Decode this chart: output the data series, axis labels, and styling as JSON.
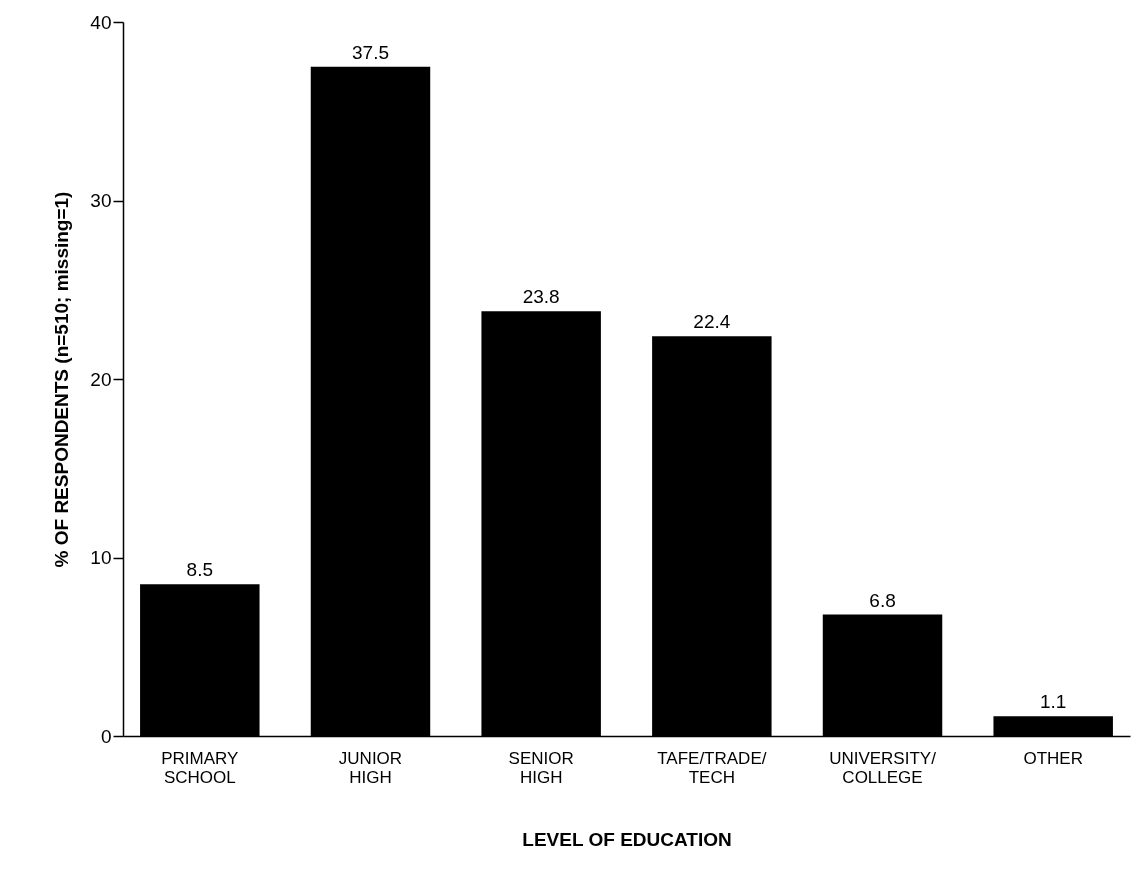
{
  "chart_data": {
    "type": "bar",
    "xlabel": "LEVEL OF EDUCATION",
    "ylabel": "% OF RESPONDENTS (n=510; missing=1)",
    "categories": [
      "PRIMARY\nSCHOOL",
      "JUNIOR\nHIGH",
      "SENIOR\nHIGH",
      "TAFE/TRADE/\nTECH",
      "UNIVERSITY/\nCOLLEGE",
      "OTHER"
    ],
    "values": [
      8.5,
      37.5,
      23.8,
      22.4,
      6.8,
      1.1
    ],
    "color": "#000000",
    "ylim": [
      0,
      40
    ],
    "yticks": [
      0,
      10,
      20,
      30,
      40
    ],
    "data_labels": true,
    "grid": false
  }
}
